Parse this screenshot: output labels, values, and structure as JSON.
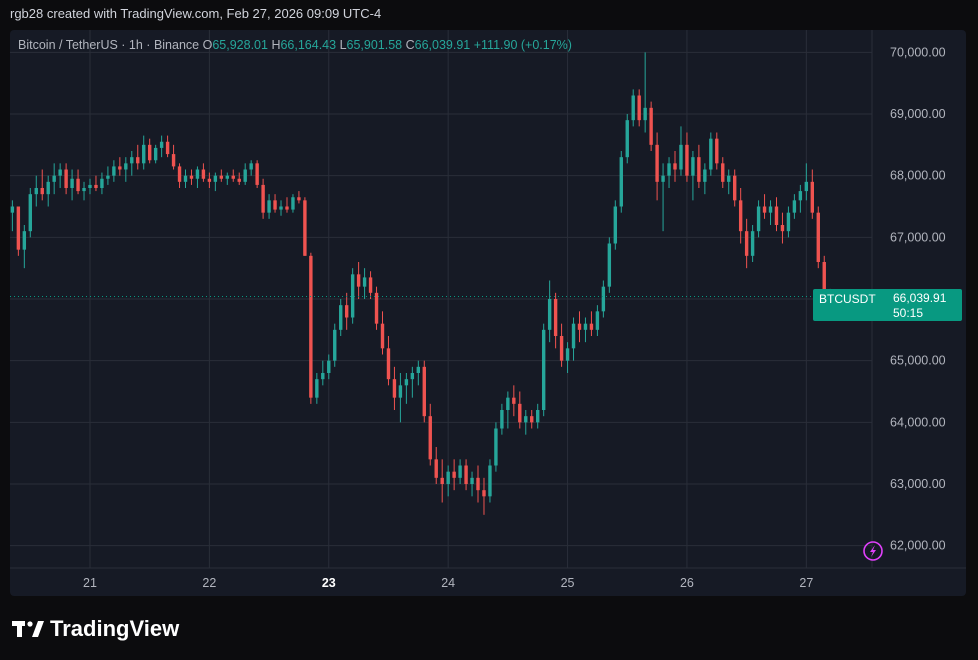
{
  "header": {
    "text": "rgb28 created with TradingView.com, Feb 27, 2026 09:09 UTC-4"
  },
  "legend": {
    "symbol": "Bitcoin / TetherUS · 1h · Binance",
    "o_label": "O",
    "o": "65,928.01",
    "h_label": "H",
    "h": "66,164.43",
    "l_label": "L",
    "l": "65,901.58",
    "c_label": "C",
    "c": "66,039.91",
    "change": "+111.90 (+0.17%)"
  },
  "price_tag": {
    "symbol": "BTCUSDT",
    "price": "66,039.91",
    "countdown": "50:15"
  },
  "footer": {
    "brand": "TradingView"
  },
  "colors": {
    "up": "#26a69a",
    "down": "#ef5350",
    "background": "#161a25",
    "grid": "#2a2e39"
  },
  "chart_data": {
    "type": "candlestick",
    "x_ticks": [
      "21",
      "22",
      "23",
      "24",
      "25",
      "26",
      "27"
    ],
    "bold_tick": "23",
    "y_ticks": [
      "62,000.00",
      "63,000.00",
      "64,000.00",
      "65,000.00",
      "66,000.00",
      "67,000.00",
      "68,000.00",
      "69,000.00",
      "70,000.00"
    ],
    "ylim": [
      61800,
      70200
    ],
    "x_range_days": [
      20.33,
      27.55
    ],
    "last_price": 66039.91,
    "candles": [
      {
        "t": 20.35,
        "o": 67400,
        "h": 67600,
        "l": 67100,
        "c": 67500
      },
      {
        "t": 20.4,
        "o": 67500,
        "h": 67500,
        "l": 66700,
        "c": 66800
      },
      {
        "t": 20.45,
        "o": 66800,
        "h": 67200,
        "l": 66500,
        "c": 67100
      },
      {
        "t": 20.5,
        "o": 67100,
        "h": 67800,
        "l": 67000,
        "c": 67700
      },
      {
        "t": 20.55,
        "o": 67700,
        "h": 68000,
        "l": 67500,
        "c": 67800
      },
      {
        "t": 20.6,
        "o": 67800,
        "h": 68100,
        "l": 67600,
        "c": 67700
      },
      {
        "t": 20.65,
        "o": 67700,
        "h": 68000,
        "l": 67500,
        "c": 67900
      },
      {
        "t": 20.7,
        "o": 67900,
        "h": 68200,
        "l": 67700,
        "c": 68000
      },
      {
        "t": 20.75,
        "o": 68000,
        "h": 68200,
        "l": 67800,
        "c": 68100
      },
      {
        "t": 20.8,
        "o": 68100,
        "h": 68200,
        "l": 67700,
        "c": 67800
      },
      {
        "t": 20.85,
        "o": 67800,
        "h": 68100,
        "l": 67600,
        "c": 67950
      },
      {
        "t": 20.9,
        "o": 67950,
        "h": 68100,
        "l": 67700,
        "c": 67750
      },
      {
        "t": 20.95,
        "o": 67750,
        "h": 67900,
        "l": 67600,
        "c": 67800
      },
      {
        "t": 21.0,
        "o": 67800,
        "h": 67950,
        "l": 67700,
        "c": 67850
      },
      {
        "t": 21.05,
        "o": 67850,
        "h": 68000,
        "l": 67750,
        "c": 67800
      },
      {
        "t": 21.1,
        "o": 67800,
        "h": 68050,
        "l": 67700,
        "c": 67950
      },
      {
        "t": 21.15,
        "o": 67950,
        "h": 68150,
        "l": 67850,
        "c": 68000
      },
      {
        "t": 21.2,
        "o": 68000,
        "h": 68250,
        "l": 67900,
        "c": 68150
      },
      {
        "t": 21.25,
        "o": 68150,
        "h": 68300,
        "l": 68000,
        "c": 68100
      },
      {
        "t": 21.3,
        "o": 68100,
        "h": 68300,
        "l": 67900,
        "c": 68200
      },
      {
        "t": 21.35,
        "o": 68200,
        "h": 68400,
        "l": 68000,
        "c": 68300
      },
      {
        "t": 21.4,
        "o": 68300,
        "h": 68500,
        "l": 68100,
        "c": 68200
      },
      {
        "t": 21.45,
        "o": 68200,
        "h": 68650,
        "l": 68100,
        "c": 68500
      },
      {
        "t": 21.5,
        "o": 68500,
        "h": 68600,
        "l": 68200,
        "c": 68250
      },
      {
        "t": 21.55,
        "o": 68250,
        "h": 68500,
        "l": 68200,
        "c": 68450
      },
      {
        "t": 21.6,
        "o": 68450,
        "h": 68650,
        "l": 68300,
        "c": 68550
      },
      {
        "t": 21.65,
        "o": 68550,
        "h": 68650,
        "l": 68300,
        "c": 68350
      },
      {
        "t": 21.7,
        "o": 68350,
        "h": 68500,
        "l": 68100,
        "c": 68150
      },
      {
        "t": 21.75,
        "o": 68150,
        "h": 68200,
        "l": 67800,
        "c": 67900
      },
      {
        "t": 21.8,
        "o": 67900,
        "h": 68100,
        "l": 67800,
        "c": 68000
      },
      {
        "t": 21.85,
        "o": 68000,
        "h": 68100,
        "l": 67850,
        "c": 67950
      },
      {
        "t": 21.9,
        "o": 67950,
        "h": 68150,
        "l": 67800,
        "c": 68100
      },
      {
        "t": 21.95,
        "o": 68100,
        "h": 68200,
        "l": 67900,
        "c": 67950
      },
      {
        "t": 22.0,
        "o": 67950,
        "h": 68050,
        "l": 67800,
        "c": 67900
      },
      {
        "t": 22.05,
        "o": 67900,
        "h": 68050,
        "l": 67750,
        "c": 68000
      },
      {
        "t": 22.1,
        "o": 68000,
        "h": 68100,
        "l": 67900,
        "c": 67950
      },
      {
        "t": 22.15,
        "o": 67950,
        "h": 68050,
        "l": 67850,
        "c": 68000
      },
      {
        "t": 22.2,
        "o": 68000,
        "h": 68100,
        "l": 67900,
        "c": 67950
      },
      {
        "t": 22.25,
        "o": 67950,
        "h": 68050,
        "l": 67850,
        "c": 67900
      },
      {
        "t": 22.3,
        "o": 67900,
        "h": 68200,
        "l": 67850,
        "c": 68100
      },
      {
        "t": 22.35,
        "o": 68100,
        "h": 68250,
        "l": 68000,
        "c": 68200
      },
      {
        "t": 22.4,
        "o": 68200,
        "h": 68250,
        "l": 67800,
        "c": 67850
      },
      {
        "t": 22.45,
        "o": 67850,
        "h": 67950,
        "l": 67300,
        "c": 67400
      },
      {
        "t": 22.5,
        "o": 67400,
        "h": 67700,
        "l": 67300,
        "c": 67600
      },
      {
        "t": 22.55,
        "o": 67600,
        "h": 67700,
        "l": 67400,
        "c": 67450
      },
      {
        "t": 22.6,
        "o": 67450,
        "h": 67600,
        "l": 67350,
        "c": 67500
      },
      {
        "t": 22.65,
        "o": 67500,
        "h": 67650,
        "l": 67400,
        "c": 67450
      },
      {
        "t": 22.7,
        "o": 67450,
        "h": 67700,
        "l": 67400,
        "c": 67650
      },
      {
        "t": 22.75,
        "o": 67650,
        "h": 67750,
        "l": 67550,
        "c": 67600
      },
      {
        "t": 22.8,
        "o": 67600,
        "h": 67650,
        "l": 66700,
        "c": 66700
      },
      {
        "t": 22.85,
        "o": 66700,
        "h": 66750,
        "l": 64300,
        "c": 64400
      },
      {
        "t": 22.9,
        "o": 64400,
        "h": 64800,
        "l": 64300,
        "c": 64700
      },
      {
        "t": 22.95,
        "o": 64700,
        "h": 65000,
        "l": 64600,
        "c": 64800
      },
      {
        "t": 23.0,
        "o": 64800,
        "h": 65100,
        "l": 64700,
        "c": 65000
      },
      {
        "t": 23.05,
        "o": 65000,
        "h": 65600,
        "l": 64900,
        "c": 65500
      },
      {
        "t": 23.1,
        "o": 65500,
        "h": 66000,
        "l": 65400,
        "c": 65900
      },
      {
        "t": 23.15,
        "o": 65900,
        "h": 66100,
        "l": 65500,
        "c": 65700
      },
      {
        "t": 23.2,
        "o": 65700,
        "h": 66500,
        "l": 65600,
        "c": 66400
      },
      {
        "t": 23.25,
        "o": 66400,
        "h": 66600,
        "l": 66000,
        "c": 66200
      },
      {
        "t": 23.3,
        "o": 66200,
        "h": 66500,
        "l": 66000,
        "c": 66350
      },
      {
        "t": 23.35,
        "o": 66350,
        "h": 66450,
        "l": 66000,
        "c": 66100
      },
      {
        "t": 23.4,
        "o": 66100,
        "h": 66200,
        "l": 65500,
        "c": 65600
      },
      {
        "t": 23.45,
        "o": 65600,
        "h": 65800,
        "l": 65100,
        "c": 65200
      },
      {
        "t": 23.5,
        "o": 65200,
        "h": 65400,
        "l": 64600,
        "c": 64700
      },
      {
        "t": 23.55,
        "o": 64700,
        "h": 64900,
        "l": 64200,
        "c": 64400
      },
      {
        "t": 23.6,
        "o": 64400,
        "h": 64800,
        "l": 64000,
        "c": 64600
      },
      {
        "t": 23.65,
        "o": 64600,
        "h": 64800,
        "l": 64300,
        "c": 64700
      },
      {
        "t": 23.7,
        "o": 64700,
        "h": 64900,
        "l": 64400,
        "c": 64800
      },
      {
        "t": 23.75,
        "o": 64800,
        "h": 65000,
        "l": 64600,
        "c": 64900
      },
      {
        "t": 23.8,
        "o": 64900,
        "h": 65000,
        "l": 64000,
        "c": 64100
      },
      {
        "t": 23.85,
        "o": 64100,
        "h": 64300,
        "l": 63300,
        "c": 63400
      },
      {
        "t": 23.9,
        "o": 63400,
        "h": 63600,
        "l": 63000,
        "c": 63100
      },
      {
        "t": 23.95,
        "o": 63100,
        "h": 63400,
        "l": 62700,
        "c": 63000
      },
      {
        "t": 24.0,
        "o": 63000,
        "h": 63300,
        "l": 62800,
        "c": 63200
      },
      {
        "t": 24.05,
        "o": 63200,
        "h": 63400,
        "l": 62900,
        "c": 63100
      },
      {
        "t": 24.1,
        "o": 63100,
        "h": 63400,
        "l": 63000,
        "c": 63300
      },
      {
        "t": 24.15,
        "o": 63300,
        "h": 63400,
        "l": 62900,
        "c": 63000
      },
      {
        "t": 24.2,
        "o": 63000,
        "h": 63200,
        "l": 62800,
        "c": 63100
      },
      {
        "t": 24.25,
        "o": 63100,
        "h": 63300,
        "l": 62700,
        "c": 62900
      },
      {
        "t": 24.3,
        "o": 62900,
        "h": 63100,
        "l": 62500,
        "c": 62800
      },
      {
        "t": 24.35,
        "o": 62800,
        "h": 63400,
        "l": 62700,
        "c": 63300
      },
      {
        "t": 24.4,
        "o": 63300,
        "h": 64000,
        "l": 63200,
        "c": 63900
      },
      {
        "t": 24.45,
        "o": 63900,
        "h": 64300,
        "l": 63800,
        "c": 64200
      },
      {
        "t": 24.5,
        "o": 64200,
        "h": 64500,
        "l": 63900,
        "c": 64400
      },
      {
        "t": 24.55,
        "o": 64400,
        "h": 64600,
        "l": 64100,
        "c": 64300
      },
      {
        "t": 24.6,
        "o": 64300,
        "h": 64500,
        "l": 63900,
        "c": 64000
      },
      {
        "t": 24.65,
        "o": 64000,
        "h": 64200,
        "l": 63800,
        "c": 64100
      },
      {
        "t": 24.7,
        "o": 64100,
        "h": 64200,
        "l": 63900,
        "c": 64000
      },
      {
        "t": 24.75,
        "o": 64000,
        "h": 64300,
        "l": 63900,
        "c": 64200
      },
      {
        "t": 24.8,
        "o": 64200,
        "h": 65600,
        "l": 64100,
        "c": 65500
      },
      {
        "t": 24.85,
        "o": 65500,
        "h": 66300,
        "l": 65300,
        "c": 66000
      },
      {
        "t": 24.9,
        "o": 66000,
        "h": 66100,
        "l": 65200,
        "c": 65400
      },
      {
        "t": 24.95,
        "o": 65400,
        "h": 65600,
        "l": 64900,
        "c": 65000
      },
      {
        "t": 25.0,
        "o": 65000,
        "h": 65300,
        "l": 64800,
        "c": 65200
      },
      {
        "t": 25.05,
        "o": 65200,
        "h": 65700,
        "l": 65000,
        "c": 65600
      },
      {
        "t": 25.1,
        "o": 65600,
        "h": 65800,
        "l": 65300,
        "c": 65500
      },
      {
        "t": 25.15,
        "o": 65500,
        "h": 65700,
        "l": 65300,
        "c": 65600
      },
      {
        "t": 25.2,
        "o": 65600,
        "h": 65800,
        "l": 65400,
        "c": 65500
      },
      {
        "t": 25.25,
        "o": 65500,
        "h": 65900,
        "l": 65400,
        "c": 65800
      },
      {
        "t": 25.3,
        "o": 65800,
        "h": 66300,
        "l": 65700,
        "c": 66200
      },
      {
        "t": 25.35,
        "o": 66200,
        "h": 67000,
        "l": 66100,
        "c": 66900
      },
      {
        "t": 25.4,
        "o": 66900,
        "h": 67600,
        "l": 66800,
        "c": 67500
      },
      {
        "t": 25.45,
        "o": 67500,
        "h": 68400,
        "l": 67400,
        "c": 68300
      },
      {
        "t": 25.5,
        "o": 68300,
        "h": 69000,
        "l": 68200,
        "c": 68900
      },
      {
        "t": 25.55,
        "o": 68900,
        "h": 69400,
        "l": 68800,
        "c": 69300
      },
      {
        "t": 25.6,
        "o": 69300,
        "h": 69400,
        "l": 68800,
        "c": 68900
      },
      {
        "t": 25.65,
        "o": 68900,
        "h": 70000,
        "l": 68700,
        "c": 69100
      },
      {
        "t": 25.7,
        "o": 69100,
        "h": 69200,
        "l": 68400,
        "c": 68500
      },
      {
        "t": 25.75,
        "o": 68500,
        "h": 68700,
        "l": 67600,
        "c": 67900
      },
      {
        "t": 25.8,
        "o": 67900,
        "h": 68200,
        "l": 67100,
        "c": 68000
      },
      {
        "t": 25.85,
        "o": 68000,
        "h": 68300,
        "l": 67800,
        "c": 68200
      },
      {
        "t": 25.9,
        "o": 68200,
        "h": 68400,
        "l": 67900,
        "c": 68100
      },
      {
        "t": 25.95,
        "o": 68100,
        "h": 68800,
        "l": 68000,
        "c": 68500
      },
      {
        "t": 26.0,
        "o": 68500,
        "h": 68700,
        "l": 67900,
        "c": 68000
      },
      {
        "t": 26.05,
        "o": 68000,
        "h": 68400,
        "l": 67600,
        "c": 68300
      },
      {
        "t": 26.1,
        "o": 68300,
        "h": 68500,
        "l": 67800,
        "c": 67900
      },
      {
        "t": 26.15,
        "o": 67900,
        "h": 68200,
        "l": 67700,
        "c": 68100
      },
      {
        "t": 26.2,
        "o": 68100,
        "h": 68700,
        "l": 68000,
        "c": 68600
      },
      {
        "t": 26.25,
        "o": 68600,
        "h": 68700,
        "l": 68100,
        "c": 68200
      },
      {
        "t": 26.3,
        "o": 68200,
        "h": 68300,
        "l": 67800,
        "c": 67900
      },
      {
        "t": 26.35,
        "o": 67900,
        "h": 68100,
        "l": 67700,
        "c": 68000
      },
      {
        "t": 26.4,
        "o": 68000,
        "h": 68100,
        "l": 67500,
        "c": 67600
      },
      {
        "t": 26.45,
        "o": 67600,
        "h": 67800,
        "l": 66900,
        "c": 67100
      },
      {
        "t": 26.5,
        "o": 67100,
        "h": 67300,
        "l": 66500,
        "c": 66700
      },
      {
        "t": 26.55,
        "o": 66700,
        "h": 67200,
        "l": 66600,
        "c": 67100
      },
      {
        "t": 26.6,
        "o": 67100,
        "h": 67600,
        "l": 67000,
        "c": 67500
      },
      {
        "t": 26.65,
        "o": 67500,
        "h": 67700,
        "l": 67300,
        "c": 67400
      },
      {
        "t": 26.7,
        "o": 67400,
        "h": 67600,
        "l": 67200,
        "c": 67500
      },
      {
        "t": 26.75,
        "o": 67500,
        "h": 67650,
        "l": 67100,
        "c": 67200
      },
      {
        "t": 26.8,
        "o": 67200,
        "h": 67400,
        "l": 66900,
        "c": 67100
      },
      {
        "t": 26.85,
        "o": 67100,
        "h": 67500,
        "l": 67000,
        "c": 67400
      },
      {
        "t": 26.9,
        "o": 67400,
        "h": 67700,
        "l": 67300,
        "c": 67600
      },
      {
        "t": 26.95,
        "o": 67600,
        "h": 67850,
        "l": 67400,
        "c": 67750
      },
      {
        "t": 27.0,
        "o": 67750,
        "h": 68200,
        "l": 67600,
        "c": 67900
      },
      {
        "t": 27.05,
        "o": 67900,
        "h": 68100,
        "l": 67300,
        "c": 67400
      },
      {
        "t": 27.1,
        "o": 67400,
        "h": 67500,
        "l": 66500,
        "c": 66600
      },
      {
        "t": 27.15,
        "o": 66600,
        "h": 66700,
        "l": 65800,
        "c": 65928.01
      },
      {
        "t": 27.2,
        "o": 65928.01,
        "h": 66164.43,
        "l": 65901.58,
        "c": 66039.91
      }
    ]
  }
}
